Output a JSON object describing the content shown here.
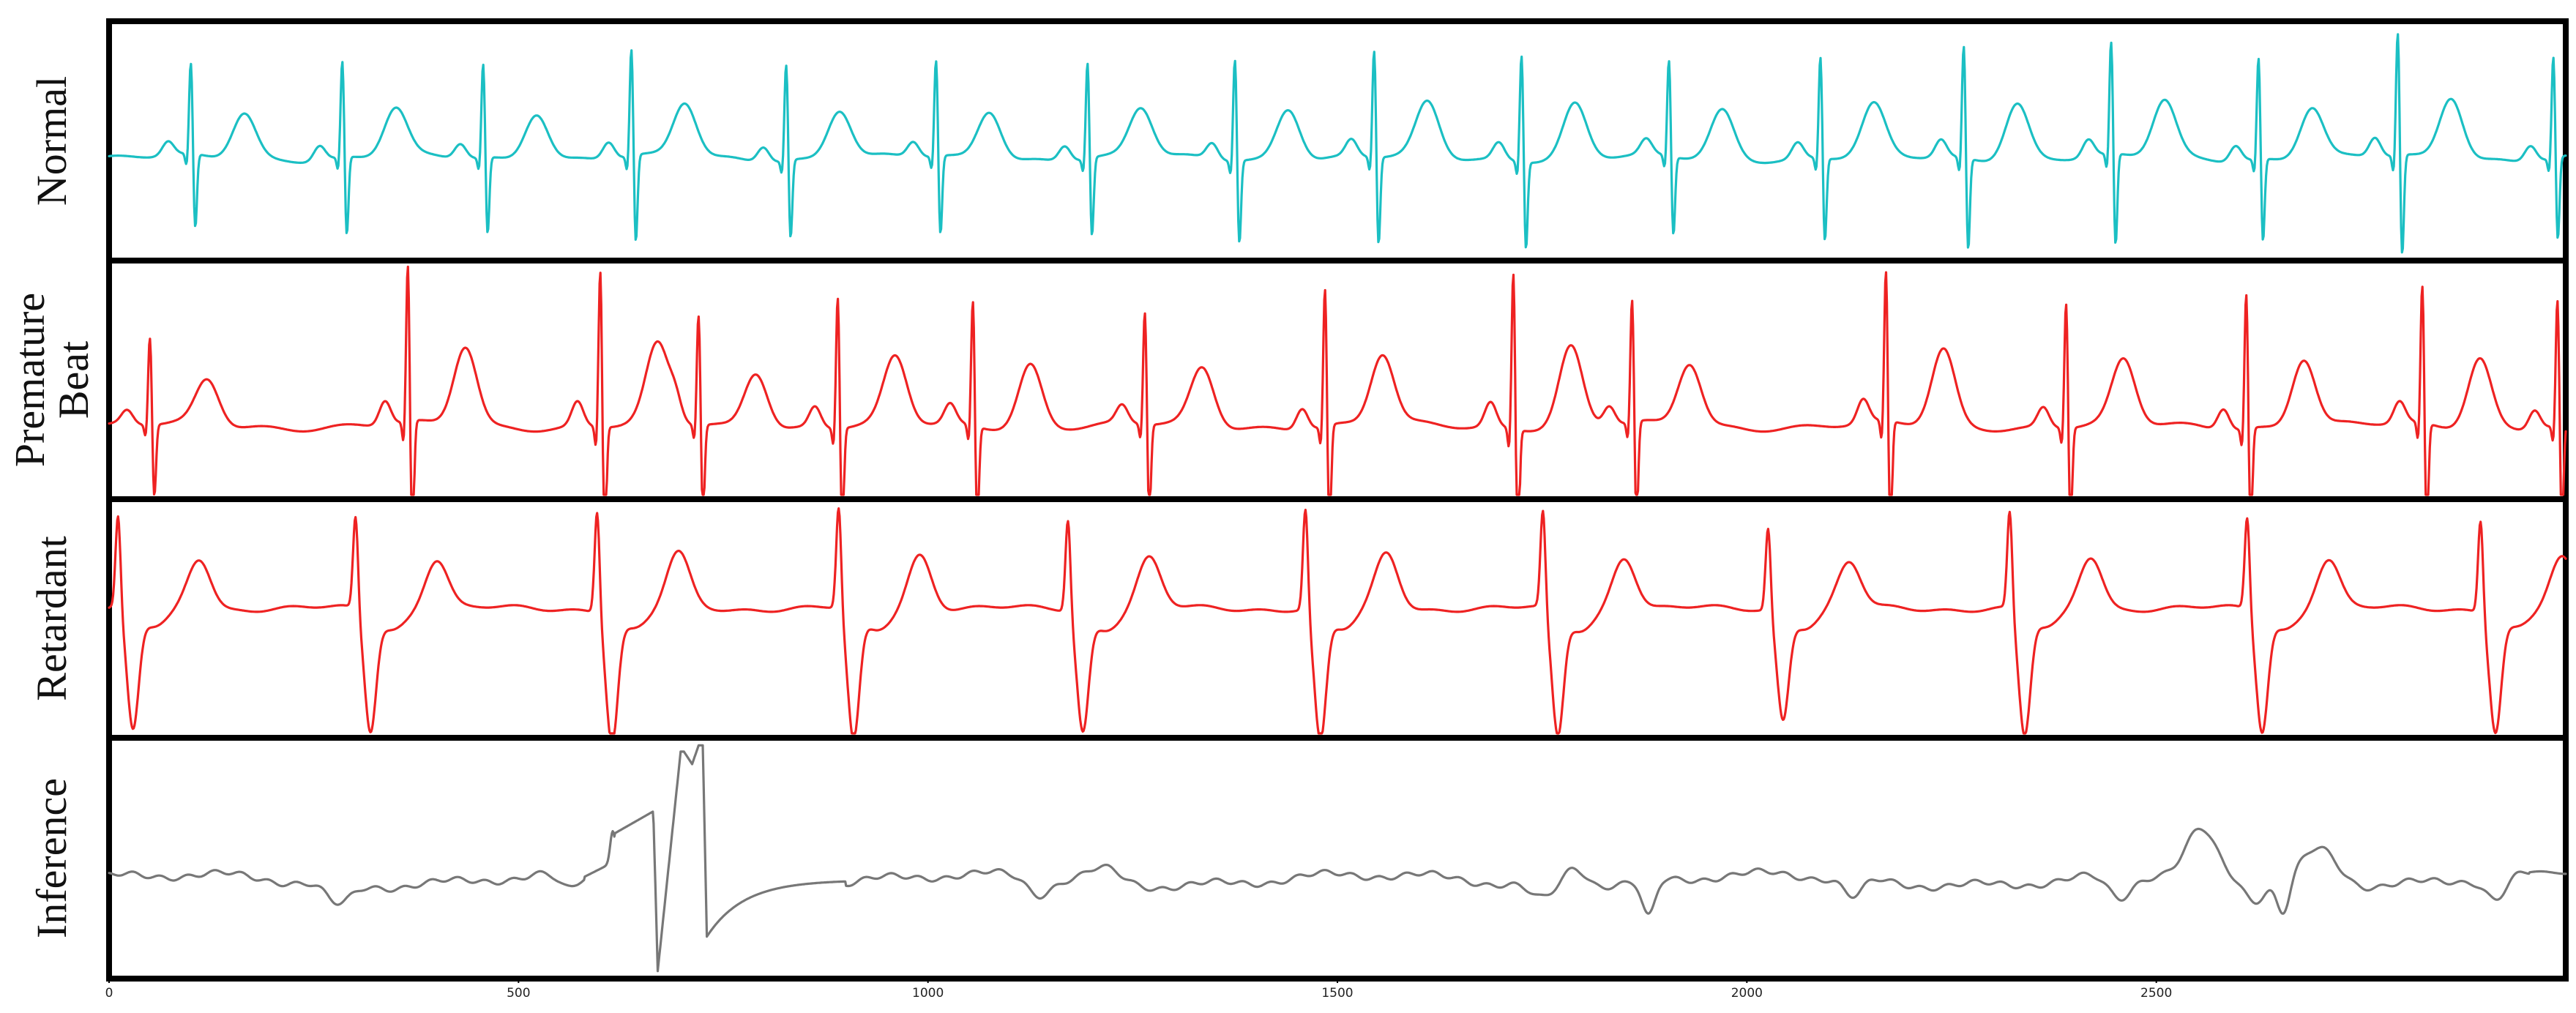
{
  "chart_data": {
    "type": "line",
    "x_ticks": [
      0,
      500,
      1000,
      1500,
      2000,
      2500
    ],
    "xlim": [
      0,
      3000
    ],
    "grid": false,
    "legend": "none",
    "panels": [
      {
        "label": "Normal",
        "color": "#1bbfc3",
        "kind": "ecg",
        "beats": [
          {
            "x": 100,
            "s": 0.85
          },
          {
            "x": 285,
            "s": 0.9
          },
          {
            "x": 457,
            "s": 0.88
          },
          {
            "x": 638,
            "s": 1.0
          },
          {
            "x": 827,
            "s": 0.9
          },
          {
            "x": 1010,
            "s": 0.9
          },
          {
            "x": 1195,
            "s": 0.9
          },
          {
            "x": 1375,
            "s": 0.95
          },
          {
            "x": 1545,
            "s": 1.0
          },
          {
            "x": 1725,
            "s": 1.0
          },
          {
            "x": 1905,
            "s": 0.9
          },
          {
            "x": 2090,
            "s": 0.95
          },
          {
            "x": 2265,
            "s": 1.05
          },
          {
            "x": 2445,
            "s": 1.05
          },
          {
            "x": 2625,
            "s": 0.95
          },
          {
            "x": 2795,
            "s": 1.15
          },
          {
            "x": 2985,
            "s": 0.95
          }
        ],
        "t_offset": 65,
        "ylim": [
          -1.0,
          1.35
        ]
      },
      {
        "label": "Premature\nBeat",
        "color": "#ee2222",
        "kind": "ecg",
        "beats": [
          {
            "x": 50,
            "s": 0.7
          },
          {
            "x": 365,
            "s": 1.25
          },
          {
            "x": 600,
            "s": 1.25
          },
          {
            "x": 720,
            "s": 0.88
          },
          {
            "x": 890,
            "s": 1.05
          },
          {
            "x": 1055,
            "s": 1.0
          },
          {
            "x": 1265,
            "s": 0.9
          },
          {
            "x": 1485,
            "s": 1.1
          },
          {
            "x": 1715,
            "s": 1.25
          },
          {
            "x": 1860,
            "s": 0.98
          },
          {
            "x": 2170,
            "s": 1.2
          },
          {
            "x": 2390,
            "s": 1.0
          },
          {
            "x": 2610,
            "s": 1.08
          },
          {
            "x": 2825,
            "s": 1.1
          },
          {
            "x": 2990,
            "s": 1.0
          }
        ],
        "t_offset": 70,
        "ylim": [
          -0.6,
          1.4
        ]
      },
      {
        "label": "Retardant",
        "color": "#ee2222",
        "kind": "inverted",
        "beats": [
          {
            "x": 15,
            "s": 1.0
          },
          {
            "x": 305,
            "s": 1.0
          },
          {
            "x": 600,
            "s": 1.1
          },
          {
            "x": 895,
            "s": 1.1
          },
          {
            "x": 1175,
            "s": 1.0
          },
          {
            "x": 1465,
            "s": 1.1
          },
          {
            "x": 1755,
            "s": 1.05
          },
          {
            "x": 2030,
            "s": 0.9
          },
          {
            "x": 2325,
            "s": 1.05
          },
          {
            "x": 2615,
            "s": 1.0
          },
          {
            "x": 2900,
            "s": 1.0
          }
        ],
        "t_offset": 95,
        "ylim": [
          -1.25,
          1.05
        ]
      },
      {
        "label": "Inference",
        "color": "#777777",
        "kind": "noise",
        "ylim": [
          -1.5,
          2.2
        ]
      }
    ]
  }
}
